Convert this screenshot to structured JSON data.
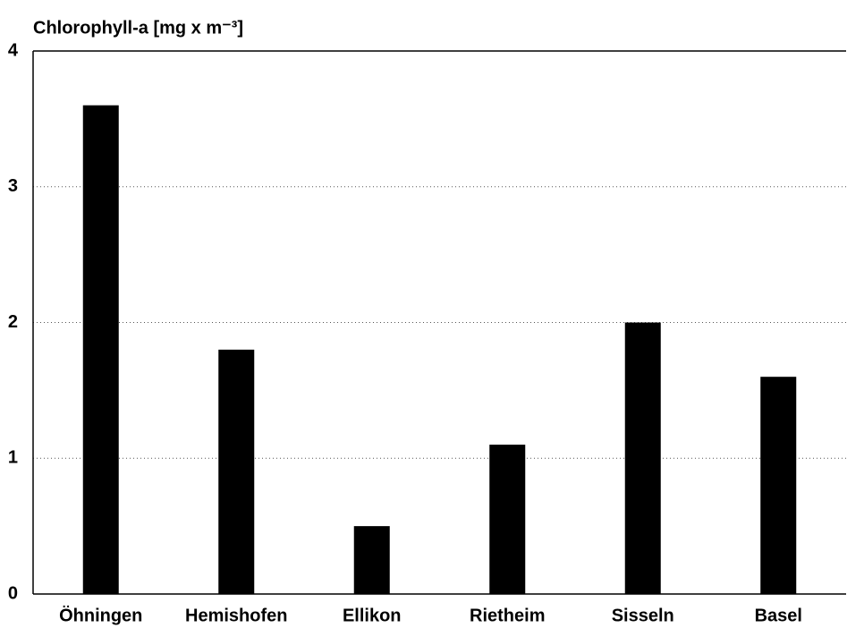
{
  "chart_data": {
    "type": "bar",
    "title": "Chlorophyll-a [mg x m⁻³]",
    "categories": [
      "Öhningen",
      "Hemishofen",
      "Ellikon",
      "Rietheim",
      "Sisseln",
      "Basel"
    ],
    "values": [
      3.6,
      1.8,
      0.5,
      1.1,
      2.0,
      1.6
    ],
    "color": "#000000",
    "ylim": [
      0,
      4
    ],
    "yticks": [
      0,
      1,
      2,
      3,
      4
    ],
    "grid": true
  }
}
